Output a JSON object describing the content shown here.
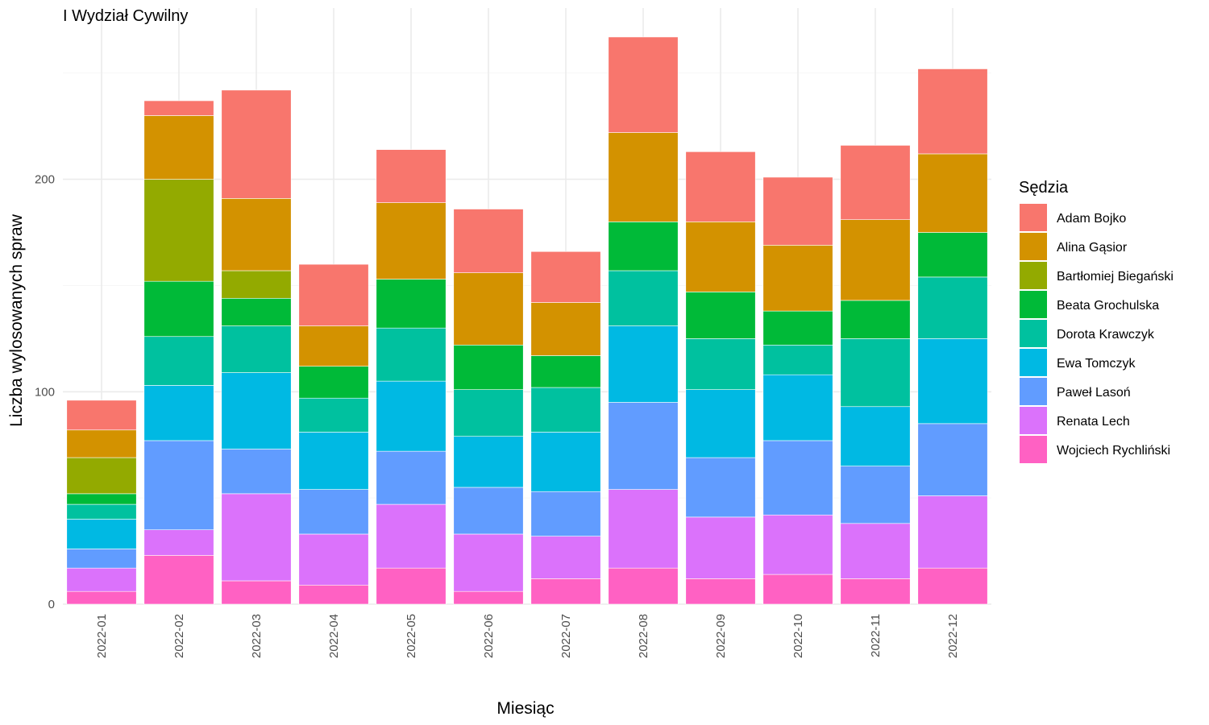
{
  "chart_data": {
    "type": "bar",
    "stacked": true,
    "title": "I Wydział Cywilny",
    "xlabel": "Miesiąc",
    "ylabel": "Liczba wylosowanych spraw",
    "ylim": [
      0,
      270
    ],
    "yticks": [
      0,
      100,
      200
    ],
    "grid": true,
    "legend_title": "Sędzia",
    "legend_position": "right",
    "categories": [
      "2022-01",
      "2022-02",
      "2022-03",
      "2022-04",
      "2022-05",
      "2022-06",
      "2022-07",
      "2022-08",
      "2022-09",
      "2022-10",
      "2022-11",
      "2022-12"
    ],
    "series": [
      {
        "name": "Adam Bojko",
        "color": "#F8766D",
        "values": [
          14,
          7,
          51,
          29,
          25,
          30,
          24,
          45,
          33,
          32,
          35,
          40
        ]
      },
      {
        "name": "Alina Gąsior",
        "color": "#D39200",
        "values": [
          13,
          30,
          34,
          19,
          36,
          34,
          25,
          42,
          33,
          31,
          38,
          37
        ]
      },
      {
        "name": "Bartłomiej Biegański",
        "color": "#93AA00",
        "values": [
          17,
          48,
          13,
          0,
          0,
          0,
          0,
          0,
          0,
          0,
          0,
          0
        ]
      },
      {
        "name": "Beata Grochulska",
        "color": "#00BA38",
        "values": [
          5,
          26,
          13,
          15,
          23,
          21,
          15,
          23,
          22,
          16,
          18,
          21
        ]
      },
      {
        "name": "Dorota Krawczyk",
        "color": "#00C19F",
        "values": [
          7,
          23,
          22,
          16,
          25,
          22,
          21,
          26,
          24,
          14,
          32,
          29
        ]
      },
      {
        "name": "Ewa Tomczyk",
        "color": "#00B9E3",
        "values": [
          14,
          26,
          36,
          27,
          33,
          24,
          28,
          36,
          32,
          31,
          28,
          40
        ]
      },
      {
        "name": "Paweł Lasoń",
        "color": "#619CFF",
        "values": [
          9,
          42,
          21,
          21,
          25,
          22,
          21,
          41,
          28,
          35,
          27,
          34
        ]
      },
      {
        "name": "Renata Lech",
        "color": "#DB72FB",
        "values": [
          11,
          12,
          41,
          24,
          30,
          27,
          20,
          37,
          29,
          28,
          26,
          34
        ]
      },
      {
        "name": "Wojciech Rychliński",
        "color": "#FF61C3",
        "values": [
          6,
          23,
          11,
          9,
          17,
          6,
          12,
          17,
          12,
          14,
          12,
          17
        ]
      }
    ]
  }
}
